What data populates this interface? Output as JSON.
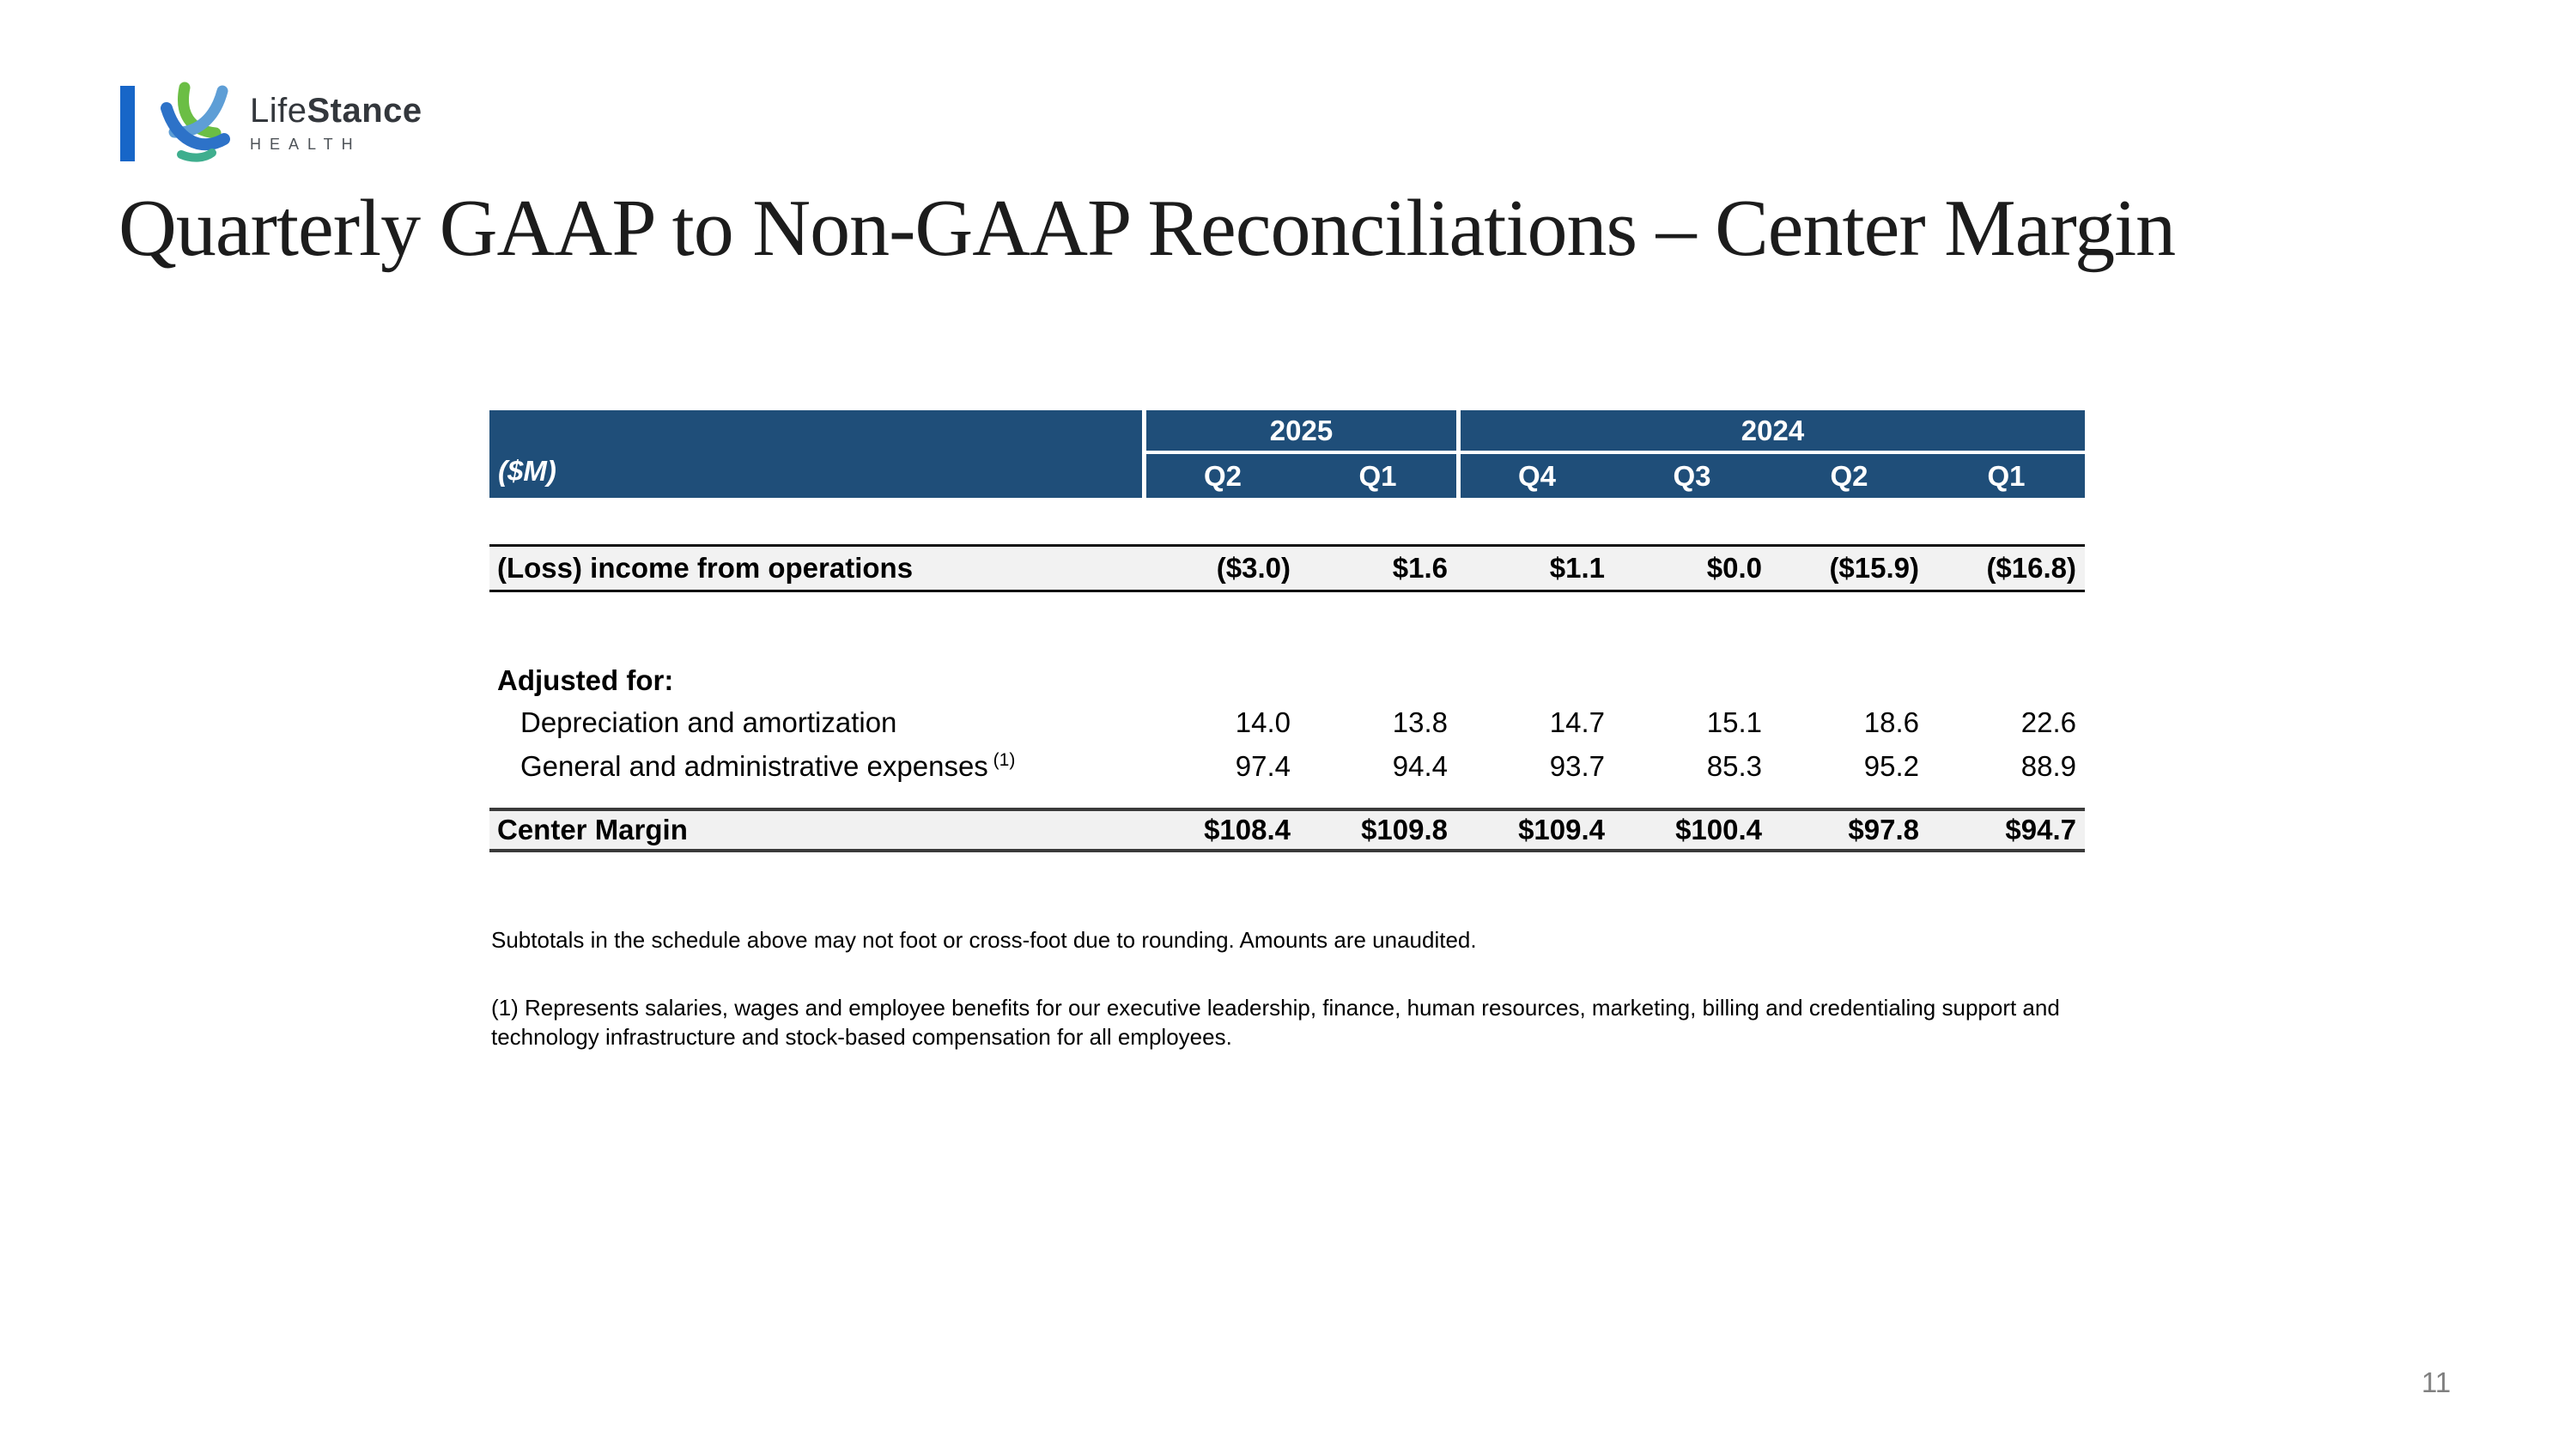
{
  "slide": {
    "title": "Quarterly GAAP to Non-GAAP Reconciliations – Center Margin",
    "page_number": "11"
  },
  "logo": {
    "brand_regular": "Life",
    "brand_bold": "Stance",
    "subtitle": "HEALTH"
  },
  "colors": {
    "header_bg": "#1F4E79",
    "row_highlight": "#F2F2F2",
    "logo_accent_blue": "#1766C8",
    "logo_green": "#6BBE45",
    "logo_light_blue": "#5E9ED6",
    "logo_blue": "#2D72C8"
  },
  "table": {
    "unit_label": "($M)",
    "year_groups": [
      {
        "label": "2025",
        "span": 2
      },
      {
        "label": "2024",
        "span": 4
      }
    ],
    "quarter_headers": [
      "Q2",
      "Q1",
      "Q4",
      "Q3",
      "Q2",
      "Q1"
    ],
    "rows": [
      {
        "style": "subtotal",
        "label": "(Loss) income from operations",
        "sup": "",
        "values": [
          "($3.0)",
          "$1.6",
          "$1.1",
          "$0.0",
          "($15.9)",
          "($16.8)"
        ]
      },
      {
        "style": "section",
        "label": "Adjusted for:",
        "sup": "",
        "values": []
      },
      {
        "style": "detail",
        "label": "Depreciation and amortization",
        "sup": "",
        "values": [
          "14.0",
          "13.8",
          "14.7",
          "15.1",
          "18.6",
          "22.6"
        ]
      },
      {
        "style": "detail",
        "label": "General and administrative expenses",
        "sup": "(1)",
        "values": [
          "97.4",
          "94.4",
          "93.7",
          "85.3",
          "95.2",
          "88.9"
        ]
      },
      {
        "style": "total",
        "label": "Center Margin",
        "sup": "",
        "values": [
          "$108.4",
          "$109.8",
          "$109.4",
          "$100.4",
          "$97.8",
          "$94.7"
        ]
      }
    ]
  },
  "footnotes": [
    "Subtotals in the schedule above may not foot or cross-foot due to rounding. Amounts are unaudited.",
    "(1) Represents salaries, wages and employee benefits for our executive leadership, finance, human resources, marketing, billing and credentialing support and technology infrastructure and stock-based compensation for all employees."
  ]
}
